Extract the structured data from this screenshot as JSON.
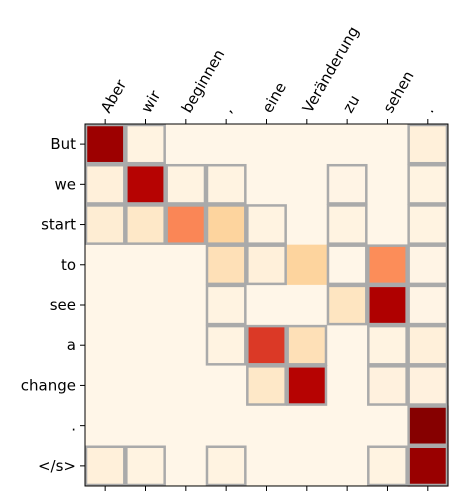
{
  "chart_data": {
    "type": "heatmap",
    "title": "",
    "xlabel": "",
    "ylabel": "",
    "x_labels": [
      "Aber",
      "wir",
      "beginnen",
      ",",
      "eine",
      "Veränderung",
      "zu",
      "sehen",
      "."
    ],
    "y_labels": [
      "But",
      "we",
      "start",
      "to",
      "see",
      "a",
      "change",
      ".",
      "</s>"
    ],
    "colormap": "OrRd",
    "vmin": 0,
    "vmax": 1,
    "grid": false,
    "values": [
      [
        0.92,
        0.03,
        0.01,
        0.01,
        0.01,
        0.01,
        0.01,
        0.01,
        0.05
      ],
      [
        0.05,
        0.85,
        0.03,
        0.03,
        0.01,
        0.01,
        0.02,
        0.01,
        0.03
      ],
      [
        0.07,
        0.1,
        0.5,
        0.22,
        0.03,
        0.01,
        0.03,
        0.01,
        0.03
      ],
      [
        0.01,
        0.01,
        0.01,
        0.15,
        0.05,
        0.22,
        0.01,
        0.48,
        0.02
      ],
      [
        0.01,
        0.01,
        0.01,
        0.03,
        0.01,
        0.01,
        0.12,
        0.87,
        0.02
      ],
      [
        0.01,
        0.01,
        0.01,
        0.03,
        0.7,
        0.15,
        0.01,
        0.03,
        0.05
      ],
      [
        0.01,
        0.01,
        0.01,
        0.01,
        0.1,
        0.85,
        0.01,
        0.04,
        0.04
      ],
      [
        0.01,
        0.01,
        0.01,
        0.01,
        0.01,
        0.01,
        0.01,
        0.01,
        0.98
      ],
      [
        0.05,
        0.03,
        0.01,
        0.03,
        0.01,
        0.01,
        0.01,
        0.03,
        0.93
      ]
    ],
    "highlighted_cells": [
      [
        0,
        0
      ],
      [
        0,
        1
      ],
      [
        0,
        8
      ],
      [
        1,
        0
      ],
      [
        1,
        1
      ],
      [
        1,
        2
      ],
      [
        1,
        3
      ],
      [
        1,
        6
      ],
      [
        1,
        8
      ],
      [
        2,
        0
      ],
      [
        2,
        1
      ],
      [
        2,
        2
      ],
      [
        2,
        3
      ],
      [
        2,
        4
      ],
      [
        2,
        6
      ],
      [
        2,
        8
      ],
      [
        3,
        3
      ],
      [
        3,
        4
      ],
      [
        3,
        6
      ],
      [
        3,
        7
      ],
      [
        3,
        8
      ],
      [
        4,
        3
      ],
      [
        4,
        6
      ],
      [
        4,
        7
      ],
      [
        4,
        8
      ],
      [
        5,
        3
      ],
      [
        5,
        4
      ],
      [
        5,
        5
      ],
      [
        5,
        7
      ],
      [
        5,
        8
      ],
      [
        6,
        4
      ],
      [
        6,
        5
      ],
      [
        6,
        7
      ],
      [
        6,
        8
      ],
      [
        7,
        8
      ],
      [
        8,
        0
      ],
      [
        8,
        1
      ],
      [
        8,
        3
      ],
      [
        8,
        7
      ],
      [
        8,
        8
      ]
    ],
    "highlight_color": "#aaaaaa"
  }
}
